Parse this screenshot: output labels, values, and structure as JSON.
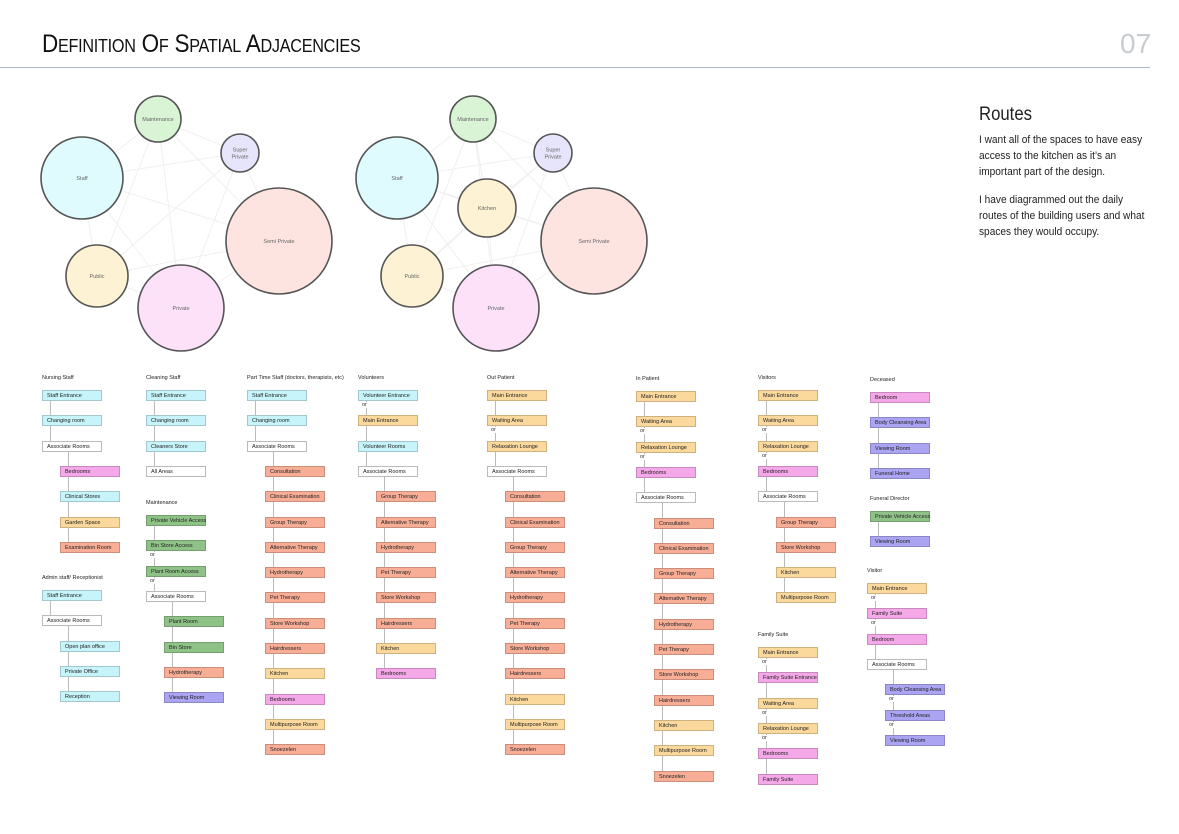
{
  "header": {
    "title": "Definition Of Spatial Adjacencies",
    "page_number": "07"
  },
  "routes": {
    "heading": "Routes",
    "paragraphs": [
      "I want all of the spaces to have easy access to the kitchen as it’s an important part of the design.",
      "I have diagrammed out the daily routes of the building users and what spaces they would occupy."
    ]
  },
  "colors": {
    "cyan": "#c6f4fa",
    "pink": "#f5a8e8",
    "yellow": "#fbd99c",
    "orange": "#f8ae96",
    "green": "#8fc287",
    "violet": "#aaa4f2",
    "white": "#ffffff"
  },
  "bubbles_left": [
    {
      "label": "Maintenance"
    },
    {
      "label": "Super Private"
    },
    {
      "label": "Staff"
    },
    {
      "label": "Semi Private"
    },
    {
      "label": "Public"
    },
    {
      "label": "Private"
    }
  ],
  "bubbles_right": [
    {
      "label": "Maintenance"
    },
    {
      "label": "Super Private"
    },
    {
      "label": "Staff"
    },
    {
      "label": "Kitchen"
    },
    {
      "label": "Semi Private"
    },
    {
      "label": "Public"
    },
    {
      "label": "Private"
    }
  ],
  "or_label": "or",
  "routes_groups": [
    {
      "title": "Nursing Staff",
      "items": [
        [
          "Staff Entrance",
          "cyan",
          0
        ],
        [
          "Changing room",
          "cyan",
          0
        ],
        [
          "Associate Rooms",
          "white",
          0
        ],
        [
          "Bedrooms",
          "pink",
          1
        ],
        [
          "Clinical Stores",
          "cyan",
          1
        ],
        [
          "Garden Space",
          "yellow",
          1
        ],
        [
          "Examination Room",
          "orange",
          1
        ]
      ]
    },
    {
      "title": "Admin staff/ Receptionist",
      "items": [
        [
          "Staff Entrance",
          "cyan",
          0
        ],
        [
          "Associate Rooms",
          "white",
          0
        ],
        [
          "Open plan office",
          "cyan",
          1
        ],
        [
          "Private Office",
          "cyan",
          1
        ],
        [
          "Reception",
          "cyan",
          1
        ]
      ]
    },
    {
      "title": "Cleaning Staff",
      "items": [
        [
          "Staff Entrance",
          "cyan",
          0
        ],
        [
          "Changing room",
          "cyan",
          0
        ],
        [
          "Cleaners Store",
          "cyan",
          0
        ],
        [
          "All Areas",
          "white",
          0
        ]
      ]
    },
    {
      "title": "Maintenance",
      "items": [
        [
          "Private Vehicle Access",
          "green",
          0
        ],
        [
          "Bin Store Access",
          "green",
          0,
          1
        ],
        [
          "Plant Room Access",
          "green",
          0,
          1
        ],
        [
          "Associate Rooms",
          "white",
          0
        ],
        [
          "Plant Room",
          "green",
          1
        ],
        [
          "Bin Store",
          "green",
          1
        ],
        [
          "Hydrotherapy",
          "orange",
          1
        ],
        [
          "Viewing Room",
          "violet",
          1
        ]
      ]
    },
    {
      "title": "Part Time Staff (doctors, therapists, etc)",
      "items": [
        [
          "Staff Entrance",
          "cyan",
          0
        ],
        [
          "Changing room",
          "cyan",
          0
        ],
        [
          "Associate Rooms",
          "white",
          0
        ],
        [
          "Consultation",
          "orange",
          1
        ],
        [
          "Clinical Examination",
          "orange",
          1
        ],
        [
          "Group Therapy",
          "orange",
          1
        ],
        [
          "Alternative Therapy",
          "orange",
          1
        ],
        [
          "Hydrotherapy",
          "orange",
          1
        ],
        [
          "Pet Therapy",
          "orange",
          1
        ],
        [
          "Store Workshop",
          "orange",
          1
        ],
        [
          "Hairdressers",
          "orange",
          1
        ],
        [
          "Kitchen",
          "yellow",
          1
        ],
        [
          "Bedrooms",
          "pink",
          1
        ],
        [
          "Multipurpose Room",
          "yellow",
          1
        ],
        [
          "Snoezelen",
          "orange",
          1
        ]
      ]
    },
    {
      "title": "Volunteers",
      "items": [
        [
          "Volunteer Entrance",
          "cyan",
          0,
          1
        ],
        [
          "Main Entrance",
          "yellow",
          0
        ],
        [
          "Volunteer Rooms",
          "cyan",
          0
        ],
        [
          "Associate Rooms",
          "white",
          0
        ],
        [
          "Group Therapy",
          "orange",
          1
        ],
        [
          "Alternative Therapy",
          "orange",
          1
        ],
        [
          "Hydrotherapy",
          "orange",
          1
        ],
        [
          "Pet Therapy",
          "orange",
          1
        ],
        [
          "Store Workshop",
          "orange",
          1
        ],
        [
          "Hairdressers",
          "orange",
          1
        ],
        [
          "Kitchen",
          "yellow",
          1
        ],
        [
          "Bedrooms",
          "pink",
          1
        ]
      ]
    },
    {
      "title": "Out Patient",
      "items": [
        [
          "Main Entrance",
          "yellow",
          0
        ],
        [
          "Waiting Area",
          "yellow",
          0,
          1
        ],
        [
          "Relaxation Lounge",
          "yellow",
          0
        ],
        [
          "Associate Rooms",
          "white",
          0
        ],
        [
          "Consultation",
          "orange",
          1
        ],
        [
          "Clinical Examination",
          "orange",
          1
        ],
        [
          "Group Therapy",
          "orange",
          1
        ],
        [
          "Alternative Therapy",
          "orange",
          1
        ],
        [
          "Hydrotherapy",
          "orange",
          1
        ],
        [
          "Pet Therapy",
          "orange",
          1
        ],
        [
          "Store Workshop",
          "orange",
          1
        ],
        [
          "Hairdressers",
          "orange",
          1
        ],
        [
          "Kitchen",
          "yellow",
          1
        ],
        [
          "Multipurpose Room",
          "yellow",
          1
        ],
        [
          "Snoezelen",
          "orange",
          1
        ]
      ]
    },
    {
      "title": "In Patient",
      "items": [
        [
          "Main Entrance",
          "yellow",
          0
        ],
        [
          "Waiting Area",
          "yellow",
          0,
          1
        ],
        [
          "Relaxation Lounge",
          "yellow",
          0,
          1
        ],
        [
          "Bedrooms",
          "pink",
          0
        ],
        [
          "Associate Rooms",
          "white",
          0
        ],
        [
          "Consultation",
          "orange",
          1
        ],
        [
          "Clinical Examination",
          "orange",
          1
        ],
        [
          "Group Therapy",
          "orange",
          1
        ],
        [
          "Alternative Therapy",
          "orange",
          1
        ],
        [
          "Hydrotherapy",
          "orange",
          1
        ],
        [
          "Pet Therapy",
          "orange",
          1
        ],
        [
          "Store Workshop",
          "orange",
          1
        ],
        [
          "Hairdressers",
          "orange",
          1
        ],
        [
          "Kitchen",
          "yellow",
          1
        ],
        [
          "Multipurpose Room",
          "yellow",
          1
        ],
        [
          "Snoezelen",
          "orange",
          1
        ]
      ]
    },
    {
      "title": "Visitors",
      "items": [
        [
          "Main Entrance",
          "yellow",
          0
        ],
        [
          "Waiting Area",
          "yellow",
          0,
          1
        ],
        [
          "Relaxation Lounge",
          "yellow",
          0,
          1
        ],
        [
          "Bedrooms",
          "pink",
          0
        ],
        [
          "Associate Rooms",
          "white",
          0
        ],
        [
          "Group Therapy",
          "orange",
          1
        ],
        [
          "Store Workshop",
          "orange",
          1
        ],
        [
          "Kitchen",
          "yellow",
          1
        ],
        [
          "Multipurpose Room",
          "yellow",
          1
        ]
      ]
    },
    {
      "title": "Family Suite",
      "items": [
        [
          "Main Entrance",
          "yellow",
          0,
          1
        ],
        [
          "Family Suite Entrance",
          "pink",
          0
        ],
        [
          "Waiting Area",
          "yellow",
          0,
          1
        ],
        [
          "Relaxation Lounge",
          "yellow",
          0,
          1
        ],
        [
          "Bedrooms",
          "pink",
          0
        ],
        [
          "Family Suite",
          "pink",
          0
        ]
      ]
    },
    {
      "title": "Deceased",
      "items": [
        [
          "Bedroom",
          "pink",
          0
        ],
        [
          "Body Cleansing Area",
          "violet",
          0
        ],
        [
          "Viewing Room",
          "violet",
          0
        ],
        [
          "Funeral Home",
          "violet",
          0
        ]
      ]
    },
    {
      "title": "Funeral Director",
      "items": [
        [
          "Private Vehicle Access",
          "green",
          0
        ],
        [
          "Viewing Room",
          "violet",
          0
        ]
      ]
    },
    {
      "title": "Visitor",
      "items": [
        [
          "Main Entrance",
          "yellow",
          0,
          1
        ],
        [
          "Family Suite",
          "pink",
          0,
          1
        ],
        [
          "Bedroom",
          "pink",
          0
        ],
        [
          "Associate Rooms",
          "white",
          0
        ],
        [
          "Body Cleansing Area",
          "violet",
          1,
          1
        ],
        [
          "Threshold Areas",
          "violet",
          1,
          1
        ],
        [
          "Viewing Room",
          "violet",
          1
        ]
      ]
    }
  ]
}
